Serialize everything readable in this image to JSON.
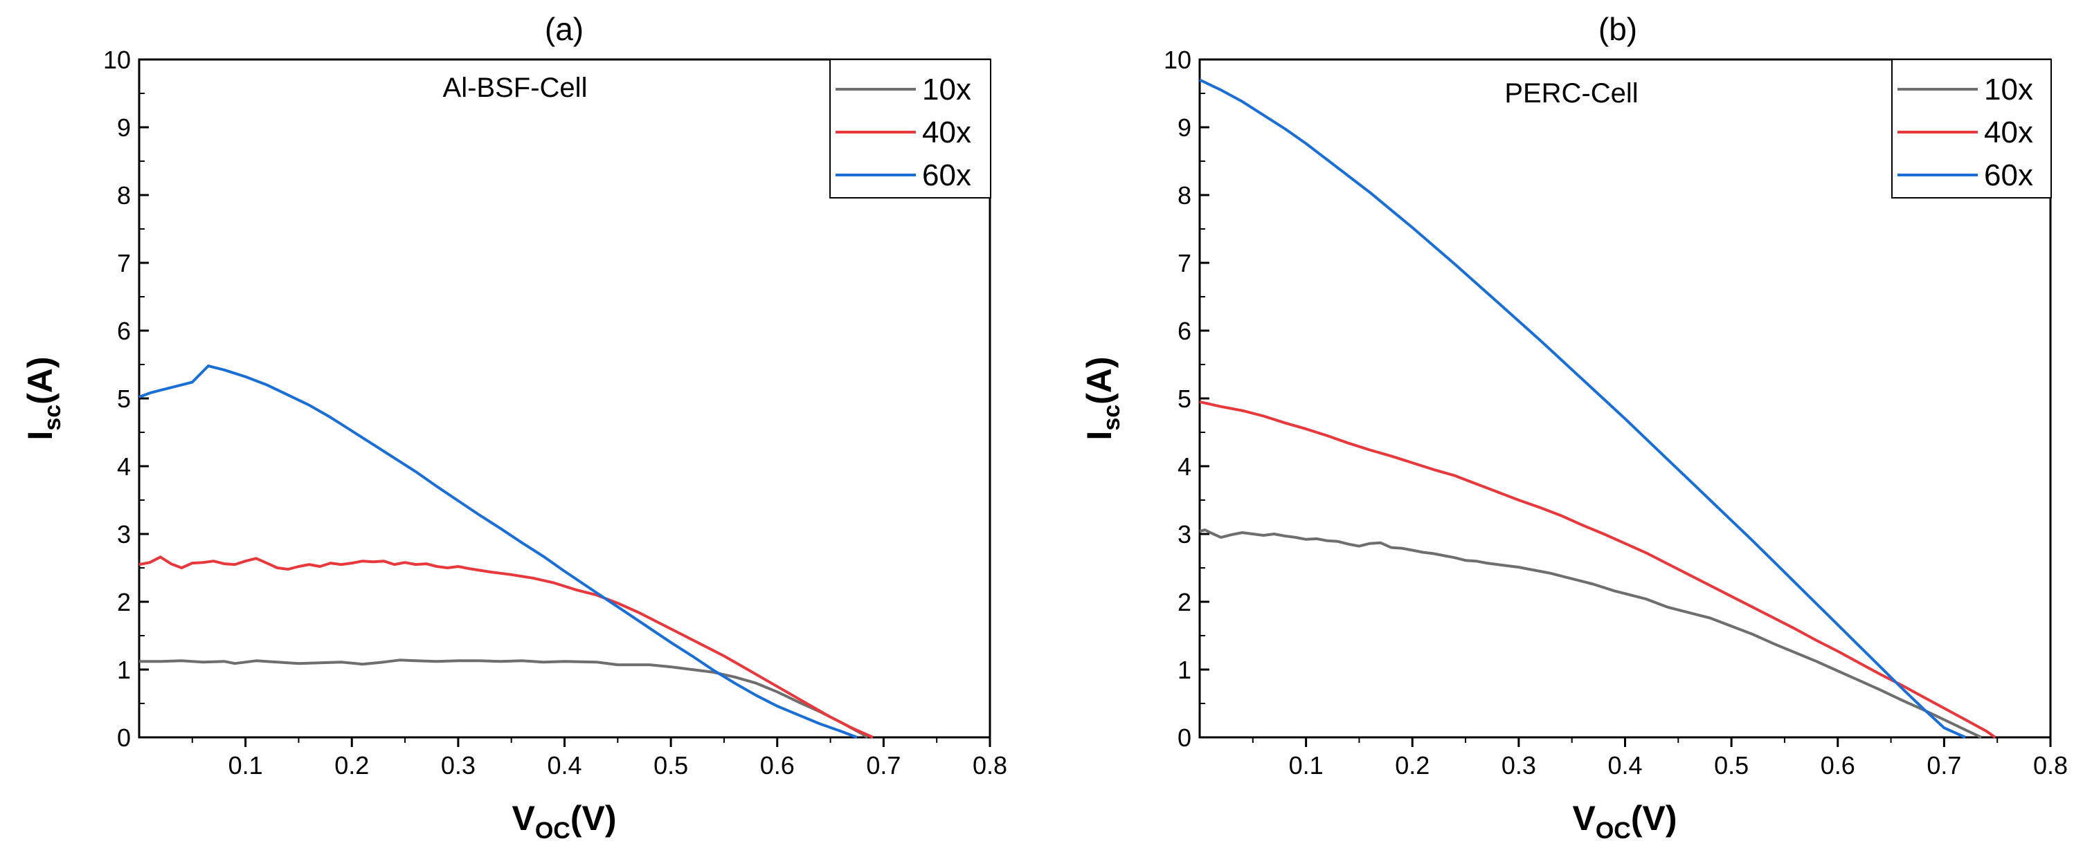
{
  "chart_data": [
    {
      "type": "line",
      "panel_label": "(a)",
      "annotation": "Al-BSF-Cell",
      "xlabel": {
        "main": "V",
        "sub": "OC",
        "unit": "(V)"
      },
      "ylabel": {
        "main": "I",
        "sub": "sc",
        "unit": "(A)"
      },
      "xlim": [
        0,
        0.8
      ],
      "ylim": [
        0,
        10
      ],
      "xticks": [
        "0.1",
        "0.2",
        "0.3",
        "0.4",
        "0.5",
        "0.6",
        "0.7",
        "0.8"
      ],
      "yticks": [
        "0",
        "1",
        "2",
        "3",
        "4",
        "5",
        "6",
        "7",
        "8",
        "9",
        "10"
      ],
      "legend_position": "top-right",
      "series": [
        {
          "name": "10x",
          "color": "#6e6e6e",
          "points": [
            [
              0.0,
              1.12
            ],
            [
              0.02,
              1.12
            ],
            [
              0.04,
              1.13
            ],
            [
              0.06,
              1.11
            ],
            [
              0.08,
              1.12
            ],
            [
              0.09,
              1.09
            ],
            [
              0.11,
              1.13
            ],
            [
              0.13,
              1.11
            ],
            [
              0.15,
              1.09
            ],
            [
              0.17,
              1.1
            ],
            [
              0.19,
              1.11
            ],
            [
              0.21,
              1.08
            ],
            [
              0.23,
              1.11
            ],
            [
              0.245,
              1.14
            ],
            [
              0.26,
              1.13
            ],
            [
              0.28,
              1.12
            ],
            [
              0.3,
              1.13
            ],
            [
              0.32,
              1.13
            ],
            [
              0.34,
              1.12
            ],
            [
              0.36,
              1.13
            ],
            [
              0.38,
              1.11
            ],
            [
              0.4,
              1.12
            ],
            [
              0.43,
              1.11
            ],
            [
              0.45,
              1.07
            ],
            [
              0.48,
              1.07
            ],
            [
              0.5,
              1.04
            ],
            [
              0.52,
              1.0
            ],
            [
              0.54,
              0.96
            ],
            [
              0.56,
              0.89
            ],
            [
              0.58,
              0.8
            ],
            [
              0.6,
              0.67
            ],
            [
              0.62,
              0.52
            ],
            [
              0.64,
              0.38
            ],
            [
              0.66,
              0.22
            ],
            [
              0.68,
              0.05
            ],
            [
              0.685,
              0.0
            ]
          ]
        },
        {
          "name": "40x",
          "color": "#e8383b",
          "points": [
            [
              0.0,
              2.55
            ],
            [
              0.01,
              2.58
            ],
            [
              0.02,
              2.66
            ],
            [
              0.03,
              2.56
            ],
            [
              0.04,
              2.5
            ],
            [
              0.05,
              2.57
            ],
            [
              0.06,
              2.58
            ],
            [
              0.07,
              2.6
            ],
            [
              0.08,
              2.56
            ],
            [
              0.09,
              2.55
            ],
            [
              0.1,
              2.6
            ],
            [
              0.11,
              2.64
            ],
            [
              0.12,
              2.57
            ],
            [
              0.13,
              2.5
            ],
            [
              0.14,
              2.48
            ],
            [
              0.15,
              2.52
            ],
            [
              0.16,
              2.55
            ],
            [
              0.17,
              2.52
            ],
            [
              0.18,
              2.57
            ],
            [
              0.19,
              2.55
            ],
            [
              0.2,
              2.57
            ],
            [
              0.21,
              2.6
            ],
            [
              0.22,
              2.59
            ],
            [
              0.23,
              2.6
            ],
            [
              0.24,
              2.55
            ],
            [
              0.25,
              2.58
            ],
            [
              0.26,
              2.55
            ],
            [
              0.27,
              2.56
            ],
            [
              0.28,
              2.52
            ],
            [
              0.29,
              2.5
            ],
            [
              0.3,
              2.52
            ],
            [
              0.31,
              2.49
            ],
            [
              0.33,
              2.44
            ],
            [
              0.35,
              2.4
            ],
            [
              0.37,
              2.35
            ],
            [
              0.39,
              2.28
            ],
            [
              0.41,
              2.18
            ],
            [
              0.43,
              2.1
            ],
            [
              0.45,
              1.98
            ],
            [
              0.47,
              1.84
            ],
            [
              0.49,
              1.68
            ],
            [
              0.51,
              1.52
            ],
            [
              0.53,
              1.36
            ],
            [
              0.55,
              1.2
            ],
            [
              0.57,
              1.02
            ],
            [
              0.59,
              0.84
            ],
            [
              0.61,
              0.66
            ],
            [
              0.63,
              0.48
            ],
            [
              0.65,
              0.3
            ],
            [
              0.67,
              0.14
            ],
            [
              0.69,
              0.0
            ]
          ]
        },
        {
          "name": "60x",
          "color": "#1a6fd6",
          "points": [
            [
              0.0,
              5.02
            ],
            [
              0.01,
              5.08
            ],
            [
              0.02,
              5.12
            ],
            [
              0.03,
              5.16
            ],
            [
              0.04,
              5.2
            ],
            [
              0.05,
              5.24
            ],
            [
              0.065,
              5.48
            ],
            [
              0.07,
              5.46
            ],
            [
              0.08,
              5.42
            ],
            [
              0.1,
              5.32
            ],
            [
              0.12,
              5.2
            ],
            [
              0.14,
              5.05
            ],
            [
              0.16,
              4.9
            ],
            [
              0.18,
              4.72
            ],
            [
              0.2,
              4.52
            ],
            [
              0.22,
              4.32
            ],
            [
              0.24,
              4.12
            ],
            [
              0.26,
              3.92
            ],
            [
              0.28,
              3.7
            ],
            [
              0.3,
              3.49
            ],
            [
              0.32,
              3.28
            ],
            [
              0.34,
              3.08
            ],
            [
              0.36,
              2.87
            ],
            [
              0.38,
              2.67
            ],
            [
              0.4,
              2.45
            ],
            [
              0.42,
              2.24
            ],
            [
              0.44,
              2.03
            ],
            [
              0.46,
              1.82
            ],
            [
              0.48,
              1.61
            ],
            [
              0.5,
              1.4
            ],
            [
              0.52,
              1.2
            ],
            [
              0.54,
              0.99
            ],
            [
              0.56,
              0.8
            ],
            [
              0.58,
              0.62
            ],
            [
              0.6,
              0.46
            ],
            [
              0.62,
              0.33
            ],
            [
              0.64,
              0.2
            ],
            [
              0.66,
              0.09
            ],
            [
              0.675,
              0.0
            ]
          ]
        }
      ]
    },
    {
      "type": "line",
      "panel_label": "(b)",
      "annotation": "PERC-Cell",
      "xlabel": {
        "main": "V",
        "sub": "OC",
        "unit": "(V)"
      },
      "ylabel": {
        "main": "I",
        "sub": "sc",
        "unit": "(A)"
      },
      "xlim": [
        0,
        0.8
      ],
      "ylim": [
        0,
        10
      ],
      "xticks": [
        "0.1",
        "0.2",
        "0.3",
        "0.4",
        "0.5",
        "0.6",
        "0.7",
        "0.8"
      ],
      "yticks": [
        "0",
        "1",
        "2",
        "3",
        "4",
        "5",
        "6",
        "7",
        "8",
        "9",
        "10"
      ],
      "legend_position": "top-right",
      "series": [
        {
          "name": "10x",
          "color": "#6e6e6e",
          "points": [
            [
              0.0,
              3.04
            ],
            [
              0.005,
              3.06
            ],
            [
              0.01,
              3.02
            ],
            [
              0.02,
              2.95
            ],
            [
              0.03,
              2.99
            ],
            [
              0.04,
              3.02
            ],
            [
              0.05,
              3.0
            ],
            [
              0.06,
              2.98
            ],
            [
              0.07,
              3.0
            ],
            [
              0.08,
              2.97
            ],
            [
              0.09,
              2.95
            ],
            [
              0.1,
              2.92
            ],
            [
              0.11,
              2.93
            ],
            [
              0.12,
              2.9
            ],
            [
              0.13,
              2.89
            ],
            [
              0.14,
              2.85
            ],
            [
              0.15,
              2.82
            ],
            [
              0.16,
              2.86
            ],
            [
              0.17,
              2.87
            ],
            [
              0.18,
              2.8
            ],
            [
              0.19,
              2.79
            ],
            [
              0.2,
              2.76
            ],
            [
              0.21,
              2.73
            ],
            [
              0.22,
              2.71
            ],
            [
              0.23,
              2.68
            ],
            [
              0.24,
              2.65
            ],
            [
              0.25,
              2.61
            ],
            [
              0.26,
              2.6
            ],
            [
              0.27,
              2.57
            ],
            [
              0.28,
              2.55
            ],
            [
              0.29,
              2.53
            ],
            [
              0.3,
              2.51
            ],
            [
              0.31,
              2.48
            ],
            [
              0.32,
              2.45
            ],
            [
              0.33,
              2.42
            ],
            [
              0.34,
              2.38
            ],
            [
              0.35,
              2.34
            ],
            [
              0.36,
              2.3
            ],
            [
              0.37,
              2.26
            ],
            [
              0.38,
              2.21
            ],
            [
              0.39,
              2.16
            ],
            [
              0.4,
              2.12
            ],
            [
              0.41,
              2.08
            ],
            [
              0.42,
              2.04
            ],
            [
              0.43,
              1.98
            ],
            [
              0.44,
              1.92
            ],
            [
              0.46,
              1.84
            ],
            [
              0.48,
              1.76
            ],
            [
              0.5,
              1.64
            ],
            [
              0.52,
              1.52
            ],
            [
              0.54,
              1.38
            ],
            [
              0.56,
              1.25
            ],
            [
              0.58,
              1.12
            ],
            [
              0.6,
              0.98
            ],
            [
              0.62,
              0.84
            ],
            [
              0.64,
              0.7
            ],
            [
              0.66,
              0.55
            ],
            [
              0.68,
              0.41
            ],
            [
              0.7,
              0.26
            ],
            [
              0.72,
              0.11
            ],
            [
              0.735,
              0.0
            ]
          ]
        },
        {
          "name": "40x",
          "color": "#e8383b",
          "points": [
            [
              0.0,
              4.95
            ],
            [
              0.02,
              4.88
            ],
            [
              0.04,
              4.82
            ],
            [
              0.06,
              4.74
            ],
            [
              0.08,
              4.64
            ],
            [
              0.1,
              4.55
            ],
            [
              0.12,
              4.45
            ],
            [
              0.14,
              4.34
            ],
            [
              0.16,
              4.24
            ],
            [
              0.18,
              4.15
            ],
            [
              0.2,
              4.05
            ],
            [
              0.22,
              3.95
            ],
            [
              0.24,
              3.86
            ],
            [
              0.26,
              3.74
            ],
            [
              0.28,
              3.62
            ],
            [
              0.3,
              3.5
            ],
            [
              0.32,
              3.39
            ],
            [
              0.34,
              3.27
            ],
            [
              0.36,
              3.13
            ],
            [
              0.38,
              3.0
            ],
            [
              0.4,
              2.86
            ],
            [
              0.42,
              2.72
            ],
            [
              0.44,
              2.56
            ],
            [
              0.46,
              2.4
            ],
            [
              0.48,
              2.24
            ],
            [
              0.5,
              2.08
            ],
            [
              0.52,
              1.92
            ],
            [
              0.54,
              1.76
            ],
            [
              0.56,
              1.6
            ],
            [
              0.58,
              1.43
            ],
            [
              0.6,
              1.27
            ],
            [
              0.62,
              1.1
            ],
            [
              0.64,
              0.93
            ],
            [
              0.66,
              0.77
            ],
            [
              0.68,
              0.6
            ],
            [
              0.7,
              0.43
            ],
            [
              0.72,
              0.26
            ],
            [
              0.74,
              0.09
            ],
            [
              0.748,
              0.0
            ]
          ]
        },
        {
          "name": "60x",
          "color": "#1a6fd6",
          "points": [
            [
              0.0,
              9.7
            ],
            [
              0.02,
              9.55
            ],
            [
              0.04,
              9.38
            ],
            [
              0.06,
              9.18
            ],
            [
              0.08,
              8.98
            ],
            [
              0.1,
              8.76
            ],
            [
              0.12,
              8.52
            ],
            [
              0.14,
              8.28
            ],
            [
              0.16,
              8.04
            ],
            [
              0.18,
              7.78
            ],
            [
              0.2,
              7.52
            ],
            [
              0.22,
              7.25
            ],
            [
              0.24,
              6.98
            ],
            [
              0.26,
              6.7
            ],
            [
              0.28,
              6.42
            ],
            [
              0.3,
              6.14
            ],
            [
              0.32,
              5.86
            ],
            [
              0.34,
              5.57
            ],
            [
              0.36,
              5.28
            ],
            [
              0.38,
              4.99
            ],
            [
              0.4,
              4.7
            ],
            [
              0.42,
              4.4
            ],
            [
              0.44,
              4.1
            ],
            [
              0.46,
              3.8
            ],
            [
              0.48,
              3.5
            ],
            [
              0.5,
              3.2
            ],
            [
              0.52,
              2.9
            ],
            [
              0.54,
              2.59
            ],
            [
              0.56,
              2.28
            ],
            [
              0.58,
              1.97
            ],
            [
              0.6,
              1.66
            ],
            [
              0.62,
              1.35
            ],
            [
              0.64,
              1.04
            ],
            [
              0.66,
              0.73
            ],
            [
              0.68,
              0.43
            ],
            [
              0.7,
              0.14
            ],
            [
              0.72,
              0.0
            ]
          ]
        }
      ]
    }
  ]
}
